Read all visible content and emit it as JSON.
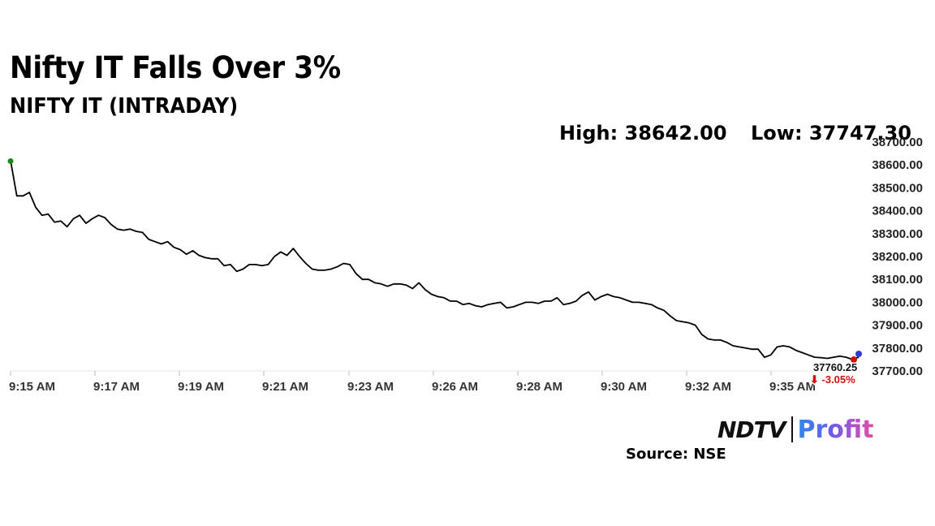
{
  "header": {
    "title": "Nifty IT Falls Over 3%",
    "subtitle": "NIFTY IT (INTRADAY)"
  },
  "stats": {
    "high_label": "High: 38642.00",
    "low_label": "Low: 37747.30"
  },
  "branding": {
    "logo_left": "NDTV",
    "logo_right": "Profit",
    "source": "Source: NSE"
  },
  "colors": {
    "line": "#000000",
    "start_marker": "#1a8a1a",
    "end_marker": "#d01010",
    "end_marker_outer": "#2a3ad0",
    "change_negative": "#d01010",
    "grid": "#e6e6e6"
  },
  "chart_data": {
    "type": "line",
    "title": "NIFTY IT (INTRADAY)",
    "xlabel": "",
    "ylabel": "",
    "x_ticks": [
      "9:15 AM",
      "9:17 AM",
      "9:19 AM",
      "9:21 AM",
      "9:23 AM",
      "9:26 AM",
      "9:28 AM",
      "9:30 AM",
      "9:32 AM",
      "9:35 AM"
    ],
    "y_ticks": [
      "37700.00",
      "37800.00",
      "37900.00",
      "38000.00",
      "38100.00",
      "38200.00",
      "38300.00",
      "38400.00",
      "38500.00",
      "38600.00",
      "38700.00"
    ],
    "ylim": [
      37700,
      38700
    ],
    "grid": false,
    "last_value_label": "37760.25",
    "change_label": "⬇ -3.05%",
    "series": [
      {
        "values": [
          38620,
          38465,
          38465,
          38480,
          38415,
          38380,
          38385,
          38350,
          38355,
          38330,
          38365,
          38380,
          38345,
          38365,
          38380,
          38370,
          38340,
          38320,
          38315,
          38320,
          38310,
          38305,
          38275,
          38265,
          38255,
          38265,
          38240,
          38230,
          38210,
          38225,
          38205,
          38195,
          38190,
          38190,
          38160,
          38165,
          38135,
          38145,
          38165,
          38165,
          38160,
          38165,
          38200,
          38220,
          38205,
          38235,
          38200,
          38170,
          38145,
          38140,
          38140,
          38145,
          38155,
          38170,
          38165,
          38125,
          38100,
          38100,
          38085,
          38080,
          38070,
          38080,
          38080,
          38075,
          38060,
          38085,
          38055,
          38035,
          38025,
          38020,
          38005,
          38005,
          37990,
          37995,
          37985,
          37980,
          37990,
          37995,
          38000,
          37975,
          37980,
          37990,
          38000,
          38000,
          37995,
          38005,
          38005,
          38020,
          37990,
          37995,
          38005,
          38030,
          38045,
          38010,
          38025,
          38035,
          38025,
          38020,
          38010,
          38000,
          38000,
          37995,
          37990,
          37975,
          37965,
          37940,
          37920,
          37915,
          37910,
          37900,
          37860,
          37840,
          37835,
          37835,
          37825,
          37810,
          37805,
          37800,
          37795,
          37795,
          37760,
          37770,
          37805,
          37810,
          37805,
          37790,
          37780,
          37770,
          37760,
          37758,
          37755,
          37760,
          37765,
          37760,
          37750,
          37760.25
        ]
      }
    ]
  }
}
